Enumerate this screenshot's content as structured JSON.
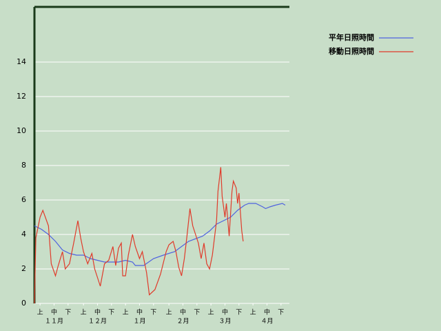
{
  "chart_data": {
    "type": "line",
    "xlim": [
      0,
      182
    ],
    "ylim": [
      0,
      17.2
    ],
    "yticks": [
      0,
      2,
      4,
      6,
      8,
      10,
      12,
      14
    ],
    "xticks": [
      {
        "value": 4,
        "label": "上"
      },
      {
        "value": 14,
        "label": "中"
      },
      {
        "value": 24,
        "label": "下"
      },
      {
        "value": 35,
        "label": "上"
      },
      {
        "value": 45,
        "label": "中"
      },
      {
        "value": 55,
        "label": "下"
      },
      {
        "value": 65,
        "label": "上"
      },
      {
        "value": 75,
        "label": "中"
      },
      {
        "value": 85,
        "label": "下"
      },
      {
        "value": 96,
        "label": "上"
      },
      {
        "value": 106,
        "label": "中"
      },
      {
        "value": 116,
        "label": "下"
      },
      {
        "value": 126,
        "label": "上"
      },
      {
        "value": 136,
        "label": "中"
      },
      {
        "value": 146,
        "label": "下"
      },
      {
        "value": 156,
        "label": "上"
      },
      {
        "value": 166,
        "label": "中"
      },
      {
        "value": 176,
        "label": "下"
      }
    ],
    "month_labels": [
      {
        "value": 14,
        "label": "１１月"
      },
      {
        "value": 45,
        "label": "１２月"
      },
      {
        "value": 75,
        "label": "１月"
      },
      {
        "value": 106,
        "label": "２月"
      },
      {
        "value": 136,
        "label": "３月"
      },
      {
        "value": 166,
        "label": "４月"
      }
    ],
    "grid": true,
    "legend": "top-right",
    "series": [
      {
        "name": "平年日照時間",
        "color": "#4f62e0",
        "x": [
          0,
          5,
          10,
          15,
          20,
          25,
          30,
          35,
          40,
          50,
          60,
          65,
          70,
          72,
          78,
          85,
          92,
          100,
          105,
          110,
          120,
          125,
          130,
          135,
          140,
          145,
          150,
          153,
          158,
          163,
          165,
          168,
          172,
          177,
          179
        ],
        "values": [
          4.5,
          4.3,
          4.0,
          3.6,
          3.1,
          2.9,
          2.8,
          2.8,
          2.6,
          2.4,
          2.4,
          2.5,
          2.4,
          2.2,
          2.2,
          2.6,
          2.8,
          3.0,
          3.3,
          3.6,
          3.9,
          4.2,
          4.6,
          4.8,
          5.0,
          5.4,
          5.7,
          5.8,
          5.8,
          5.6,
          5.5,
          5.6,
          5.7,
          5.8,
          5.7
        ]
      },
      {
        "name": "移動日照時間",
        "color": "#e03a2a",
        "x": [
          0,
          1,
          4,
          6,
          10,
          12,
          15,
          17,
          20,
          22,
          25,
          28,
          31,
          33,
          35,
          38,
          41,
          43,
          47,
          50,
          53,
          56,
          58,
          60,
          62,
          63,
          65,
          67,
          70,
          72,
          75,
          77,
          80,
          82,
          86,
          90,
          94,
          96,
          99,
          101,
          103,
          105,
          107,
          109,
          111,
          113,
          117,
          119,
          121,
          123,
          125,
          127,
          130,
          131,
          133,
          134,
          136,
          137,
          139,
          141,
          142,
          144,
          145,
          146,
          148,
          149
        ],
        "values": [
          0,
          3.8,
          5.0,
          5.4,
          4.5,
          2.3,
          1.6,
          2.2,
          3.0,
          2.0,
          2.3,
          3.5,
          4.8,
          3.8,
          3.0,
          2.3,
          2.9,
          2.0,
          1.0,
          2.3,
          2.5,
          3.3,
          2.2,
          3.2,
          3.5,
          1.6,
          1.6,
          2.8,
          4.0,
          3.3,
          2.6,
          3.0,
          1.8,
          0.5,
          0.8,
          1.7,
          3.0,
          3.4,
          3.6,
          3.0,
          2.1,
          1.6,
          2.6,
          4.0,
          5.5,
          4.5,
          3.5,
          2.6,
          3.5,
          2.3,
          2.0,
          2.8,
          4.8,
          6.5,
          7.9,
          6.2,
          5.0,
          5.8,
          3.9,
          6.5,
          7.1,
          6.7,
          5.8,
          6.4,
          4.2,
          3.6
        ]
      }
    ]
  }
}
